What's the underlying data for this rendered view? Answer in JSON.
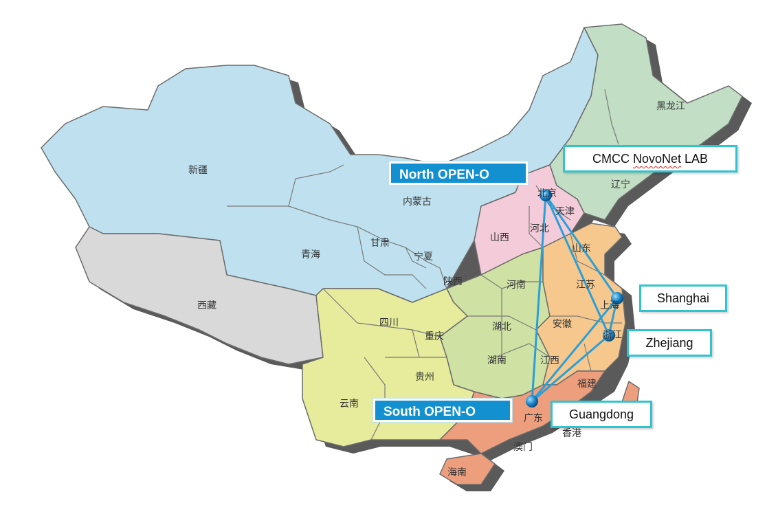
{
  "colors": {
    "north_region": "#bfe1ef",
    "tibet": "#d9d9d9",
    "northeast": "#c2dfc5",
    "north_china": "#f3cbd9",
    "central": "#cfe1a3",
    "east": "#f6c88d",
    "southwest": "#e7ec9c",
    "south": "#ec9e7d",
    "link_line": "#2a9fd8",
    "banner_fill": "#1390cf",
    "callout_border": "#2fc4d0"
  },
  "provinces": [
    {
      "key": "xinjiang",
      "name": "新疆"
    },
    {
      "key": "xizang",
      "name": "西藏"
    },
    {
      "key": "qinghai",
      "name": "青海"
    },
    {
      "key": "gansu",
      "name": "甘肃"
    },
    {
      "key": "neimenggu",
      "name": "内蒙古"
    },
    {
      "key": "ningxia",
      "name": "宁夏"
    },
    {
      "key": "shaanxi",
      "name": "陕西"
    },
    {
      "key": "shanxi",
      "name": "山西"
    },
    {
      "key": "hebei",
      "name": "河北"
    },
    {
      "key": "beijing",
      "name": "北京"
    },
    {
      "key": "tianjin",
      "name": "天津"
    },
    {
      "key": "liaoning",
      "name": "辽宁"
    },
    {
      "key": "heilongjiang",
      "name": "黑龙江"
    },
    {
      "key": "shandong",
      "name": "山东"
    },
    {
      "key": "henan",
      "name": "河南"
    },
    {
      "key": "jiangsu",
      "name": "江苏"
    },
    {
      "key": "shanghai",
      "name": "上海"
    },
    {
      "key": "anhui",
      "name": "安徽"
    },
    {
      "key": "zhejiang",
      "name": "浙江"
    },
    {
      "key": "hubei",
      "name": "湖北"
    },
    {
      "key": "sichuan",
      "name": "四川"
    },
    {
      "key": "chongqing",
      "name": "重庆"
    },
    {
      "key": "hunan",
      "name": "湖南"
    },
    {
      "key": "jiangxi",
      "name": "江西"
    },
    {
      "key": "guizhou",
      "name": "贵州"
    },
    {
      "key": "fujian",
      "name": "福建"
    },
    {
      "key": "yunnan",
      "name": "云南"
    },
    {
      "key": "guangdong",
      "name": "广东"
    },
    {
      "key": "xianggang",
      "name": "香港"
    },
    {
      "key": "aomen",
      "name": "澳门"
    },
    {
      "key": "hainan",
      "name": "海南"
    }
  ],
  "banners": {
    "north": "North OPEN-O",
    "south": "South OPEN-O"
  },
  "callouts": {
    "lab": "CMCC NovoNet LAB",
    "shanghai": "Shanghai",
    "zhejiang": "Zhejiang",
    "guangdong": "Guangdong"
  },
  "nodes": [
    "beijing",
    "shanghai",
    "zhejiang",
    "guangdong"
  ],
  "links": [
    [
      "beijing",
      "shanghai"
    ],
    [
      "beijing",
      "zhejiang"
    ],
    [
      "beijing",
      "guangdong"
    ],
    [
      "shanghai",
      "zhejiang"
    ],
    [
      "shanghai",
      "guangdong"
    ],
    [
      "zhejiang",
      "guangdong"
    ]
  ]
}
